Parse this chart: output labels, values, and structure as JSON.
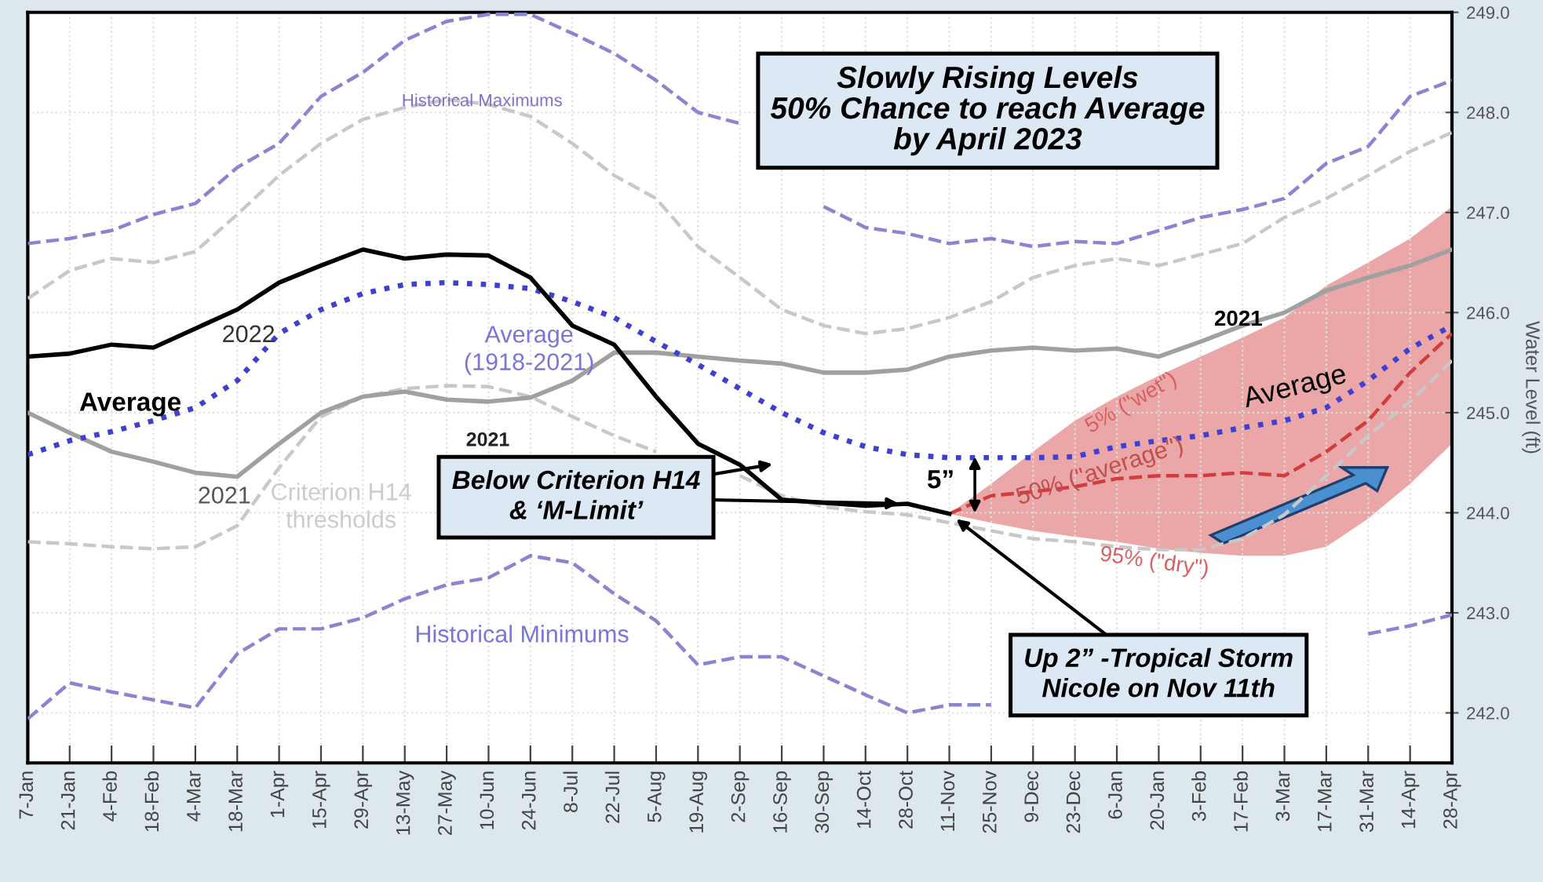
{
  "chart_data": {
    "type": "line",
    "title": "Slowly Rising Levels\n50% Chance to reach Average\nby April 2023",
    "ylabel": "Water Level (ft)",
    "categories": [
      "7-Jan",
      "21-Jan",
      "4-Feb",
      "18-Feb",
      "4-Mar",
      "18-Mar",
      "1-Apr",
      "15-Apr",
      "29-Apr",
      "13-May",
      "27-May",
      "10-Jun",
      "24-Jun",
      "8-Jul",
      "22-Jul",
      "5-Aug",
      "19-Aug",
      "2-Sep",
      "16-Sep",
      "30-Sep",
      "14-Oct",
      "28-Oct",
      "11-Nov",
      "25-Nov",
      "9-Dec",
      "23-Dec",
      "6-Jan",
      "20-Jan",
      "3-Feb",
      "17-Feb",
      "3-Mar",
      "17-Mar",
      "31-Mar",
      "14-Apr",
      "28-Apr"
    ],
    "ylim": [
      241.5,
      249
    ],
    "yticks": [
      {
        "value": 242,
        "label": "242.0"
      },
      {
        "value": 243,
        "label": "243.0"
      },
      {
        "value": 244,
        "label": "244.0"
      },
      {
        "value": 245,
        "label": "245.0"
      },
      {
        "value": 246,
        "label": "246.0"
      },
      {
        "value": 247,
        "label": "247.0"
      },
      {
        "value": 248,
        "label": "248.0"
      },
      {
        "value": 249,
        "label": "249.0"
      }
    ],
    "grid": true,
    "legend": false,
    "marker": "none",
    "series": [
      {
        "color": "#c8c8c8",
        "line_style": "dashed",
        "values": [
          246.14,
          246.42,
          246.54,
          246.5,
          246.61,
          246.98,
          247.37,
          247.69,
          247.93,
          248.05,
          248.13,
          248.08,
          247.96,
          247.69,
          247.37,
          247.14,
          246.66,
          246.35,
          246.03,
          245.87,
          245.79,
          245.84,
          245.95,
          246.11,
          246.35,
          246.47,
          246.54,
          246.47,
          246.58,
          246.69,
          246.95,
          247.14,
          247.37,
          247.61,
          247.8
        ]
      },
      {
        "color": "#c8c8c8",
        "line_style": "dashed",
        "values": [
          243.71,
          243.69,
          243.66,
          243.64,
          243.66,
          243.87,
          244.45,
          244.96,
          245.16,
          245.24,
          245.27,
          245.26,
          245.16,
          244.96,
          244.77,
          244.61,
          null,
          244.37,
          244.17,
          244.06,
          244.01,
          243.98,
          243.9,
          243.82,
          243.74,
          243.71,
          243.66,
          243.63,
          243.63,
          243.74,
          243.98,
          244.37,
          244.77,
          245.11,
          245.52
        ]
      },
      {
        "color": "#8a85d0",
        "line_style": "dashed",
        "values": [
          246.69,
          246.74,
          246.82,
          246.98,
          247.09,
          247.45,
          247.69,
          248.16,
          248.4,
          248.72,
          248.91,
          248.98,
          248.98,
          248.79,
          248.59,
          248.32,
          248.0,
          247.89,
          null,
          247.06,
          246.85,
          246.79,
          246.69,
          246.74,
          246.66,
          246.71,
          246.69,
          246.82,
          246.95,
          247.03,
          247.14,
          247.49,
          247.66,
          248.16,
          248.32
        ]
      },
      {
        "color": "#8a85d0",
        "line_style": "dashed",
        "values": [
          241.94,
          242.3,
          242.21,
          242.13,
          242.05,
          242.59,
          242.84,
          242.84,
          242.95,
          243.14,
          243.28,
          243.35,
          243.57,
          243.5,
          243.19,
          242.92,
          242.48,
          242.56,
          242.56,
          242.37,
          242.18,
          242.0,
          242.08,
          242.08,
          null,
          null,
          null,
          null,
          null,
          null,
          null,
          null,
          242.79,
          242.87,
          242.98
        ]
      },
      {
        "color": "#a0a0a0",
        "line_style": "solid",
        "values": [
          245.0,
          244.8,
          244.61,
          244.51,
          244.4,
          244.36,
          244.69,
          245.0,
          245.16,
          245.21,
          245.13,
          245.11,
          245.15,
          245.32,
          245.6,
          245.6,
          245.56,
          245.52,
          245.49,
          245.4,
          245.4,
          245.43,
          245.56,
          245.62,
          245.65,
          245.62,
          245.64,
          245.56,
          245.71,
          245.87,
          246.0,
          246.22,
          246.35,
          246.47,
          246.63
        ]
      },
      {
        "color": "#d23c3c",
        "line_style": "dashed",
        "values": [
          null,
          null,
          null,
          null,
          null,
          null,
          null,
          null,
          null,
          null,
          null,
          null,
          null,
          null,
          null,
          null,
          null,
          null,
          null,
          null,
          null,
          null,
          243.99,
          244.17,
          244.21,
          244.26,
          244.34,
          244.37,
          244.37,
          244.4,
          244.37,
          244.61,
          244.92,
          245.4,
          245.79
        ],
        "lower": [
          null,
          null,
          null,
          null,
          null,
          null,
          null,
          null,
          null,
          null,
          null,
          null,
          null,
          null,
          null,
          null,
          null,
          null,
          null,
          null,
          null,
          null,
          243.99,
          243.9,
          243.82,
          243.76,
          243.71,
          243.64,
          243.6,
          243.57,
          243.57,
          243.66,
          243.94,
          244.29,
          244.69
        ],
        "upper": [
          null,
          null,
          null,
          null,
          null,
          null,
          null,
          null,
          null,
          null,
          null,
          null,
          null,
          null,
          null,
          null,
          null,
          null,
          null,
          null,
          null,
          null,
          243.99,
          244.29,
          244.61,
          244.92,
          245.16,
          245.37,
          245.56,
          245.75,
          245.95,
          246.27,
          246.5,
          246.74,
          247.06
        ]
      },
      {
        "color": "#4040d0",
        "line_style": "dotted",
        "values": [
          244.58,
          244.72,
          244.81,
          244.92,
          245.05,
          245.32,
          245.79,
          246.03,
          246.19,
          246.28,
          246.3,
          246.28,
          246.24,
          246.11,
          245.95,
          245.71,
          245.48,
          245.24,
          245.0,
          244.8,
          244.66,
          244.58,
          244.55,
          244.55,
          244.55,
          244.56,
          244.66,
          244.72,
          244.77,
          244.85,
          244.92,
          245.05,
          245.32,
          245.64,
          245.87
        ]
      },
      {
        "color": "#000000",
        "line_style": "solid",
        "values": [
          245.56,
          245.59,
          245.68,
          245.65,
          245.84,
          246.03,
          246.3,
          246.47,
          246.63,
          246.54,
          246.58,
          246.57,
          246.35,
          245.87,
          245.68,
          245.16,
          244.69,
          244.48,
          244.13,
          244.1,
          244.07,
          244.09,
          243.99,
          null,
          null,
          null,
          null,
          null,
          null,
          null,
          null,
          null,
          null,
          null,
          null
        ]
      }
    ],
    "annotations": [
      "Historical Maximums",
      "2022",
      "Average\n(1918-2021)",
      "Average",
      "2021",
      "2021",
      "Criterion H14\nthresholds",
      {
        "text": "Below Criterion H14\n& ‘M-Limit’",
        "x": "28-Oct",
        "y": 244.09
      },
      "Historical Minimums",
      "5”",
      "5% (\"wet\")",
      "50% (\"average\")",
      "95% (\"dry\")",
      {
        "text": "Up 2” -Tropical Storm\nNicole on Nov 11th",
        "x": "11-Nov",
        "y": 243.99
      },
      "Average",
      "2021"
    ]
  }
}
